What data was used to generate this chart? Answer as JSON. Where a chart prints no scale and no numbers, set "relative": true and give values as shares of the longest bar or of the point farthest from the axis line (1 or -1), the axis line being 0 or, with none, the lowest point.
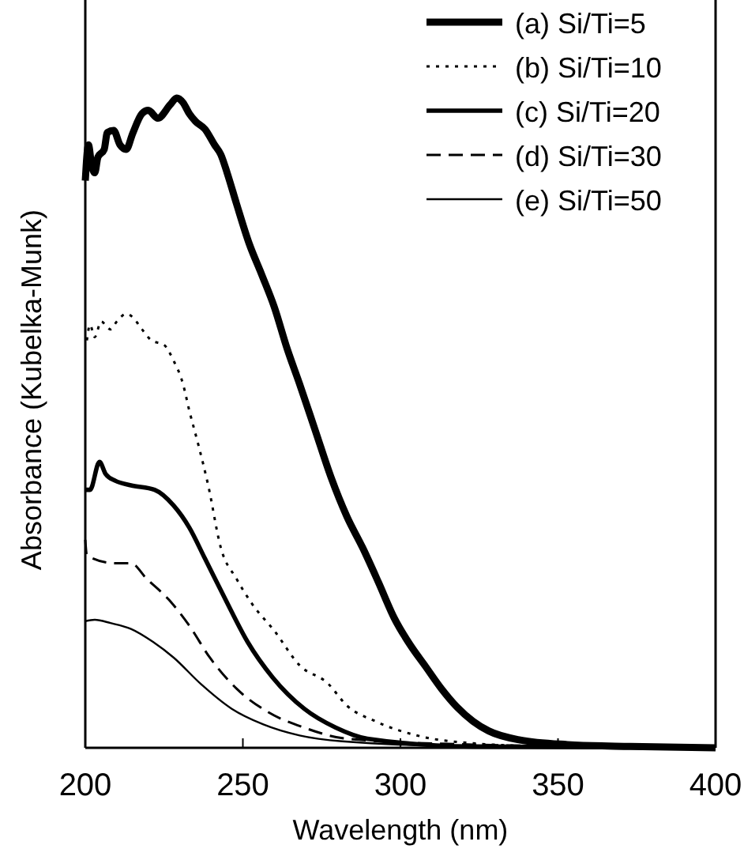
{
  "chart_data": {
    "type": "line",
    "xlabel": "Wavelength (nm)",
    "ylabel": "Absorbance (Kubelka-Munk)",
    "relative": true,
    "xlim": [
      200,
      400
    ],
    "xticks": [
      200,
      250,
      300,
      350,
      400
    ],
    "legend": "top right",
    "grid": false,
    "marker": "none",
    "series": [
      {
        "name": "(a) Si/Ti=5",
        "color": "#000000",
        "line_style": "solid",
        "x": [
          200,
          201,
          202,
          203,
          204,
          206,
          207,
          209,
          211,
          213,
          215,
          218,
          220,
          223,
          227,
          229,
          231,
          233,
          235,
          238,
          241,
          243,
          245,
          248,
          252,
          256,
          260,
          264,
          268,
          273,
          278,
          283,
          288,
          293,
          298,
          303,
          308,
          313,
          318,
          323,
          328,
          338,
          353,
          373,
          400
        ],
        "values": [
          0.873,
          0.928,
          0.897,
          0.885,
          0.909,
          0.921,
          0.947,
          0.95,
          0.928,
          0.921,
          0.945,
          0.976,
          0.981,
          0.969,
          0.99,
          1,
          0.993,
          0.976,
          0.964,
          0.952,
          0.928,
          0.913,
          0.885,
          0.837,
          0.776,
          0.728,
          0.678,
          0.615,
          0.56,
          0.488,
          0.416,
          0.356,
          0.308,
          0.255,
          0.2,
          0.159,
          0.125,
          0.091,
          0.0625,
          0.041,
          0.026,
          0.012,
          0.005,
          0.002,
          0
        ]
      },
      {
        "name": "(b) Si/Ti=10",
        "color": "#000000",
        "line_style": "dotted",
        "x": [
          200.5,
          201.5,
          203,
          205,
          208,
          210,
          213,
          215,
          218,
          221,
          225,
          228,
          231,
          233,
          236,
          239,
          243,
          248,
          253,
          260,
          268,
          277,
          283,
          292,
          307,
          323,
          348,
          400
        ],
        "values": [
          0.627,
          0.651,
          0.632,
          0.656,
          0.644,
          0.656,
          0.668,
          0.663,
          0.644,
          0.627,
          0.62,
          0.596,
          0.56,
          0.519,
          0.464,
          0.404,
          0.308,
          0.26,
          0.221,
          0.18,
          0.127,
          0.099,
          0.065,
          0.041,
          0.017,
          0.007,
          0.002,
          0
        ]
      },
      {
        "name": "(c) Si/Ti=20",
        "color": "#000000",
        "line_style": "solid",
        "x": [
          200,
          201.5,
          204.5,
          206.5,
          209.5,
          214.5,
          222,
          228,
          233,
          238,
          244.5,
          251.5,
          259.5,
          269.5,
          279.5,
          289.5,
          323,
          400
        ],
        "values": [
          0.397,
          0.397,
          0.44,
          0.421,
          0.411,
          0.404,
          0.397,
          0.373,
          0.339,
          0.291,
          0.228,
          0.163,
          0.108,
          0.06,
          0.031,
          0.014,
          0.002,
          0
        ]
      },
      {
        "name": "(d) Si/Ti=30",
        "color": "#000000",
        "line_style": "dashed",
        "x": [
          200,
          200.5,
          209.5,
          214.5,
          219.5,
          226.5,
          233,
          239.5,
          248,
          258,
          269.5,
          283,
          323,
          400
        ],
        "values": [
          0.32,
          0.296,
          0.284,
          0.284,
          0.26,
          0.228,
          0.188,
          0.139,
          0.091,
          0.055,
          0.031,
          0.014,
          0.005,
          0
        ]
      },
      {
        "name": "(e) Si/Ti=50",
        "color": "#000000",
        "line_style": "solid",
        "x": [
          200,
          203,
          208,
          214.5,
          221.5,
          228,
          236.5,
          246.5,
          256.5,
          268,
          281.5,
          323,
          400
        ],
        "values": [
          0.195,
          0.197,
          0.192,
          0.183,
          0.163,
          0.139,
          0.099,
          0.06,
          0.036,
          0.019,
          0.01,
          0.002,
          0
        ]
      }
    ]
  }
}
